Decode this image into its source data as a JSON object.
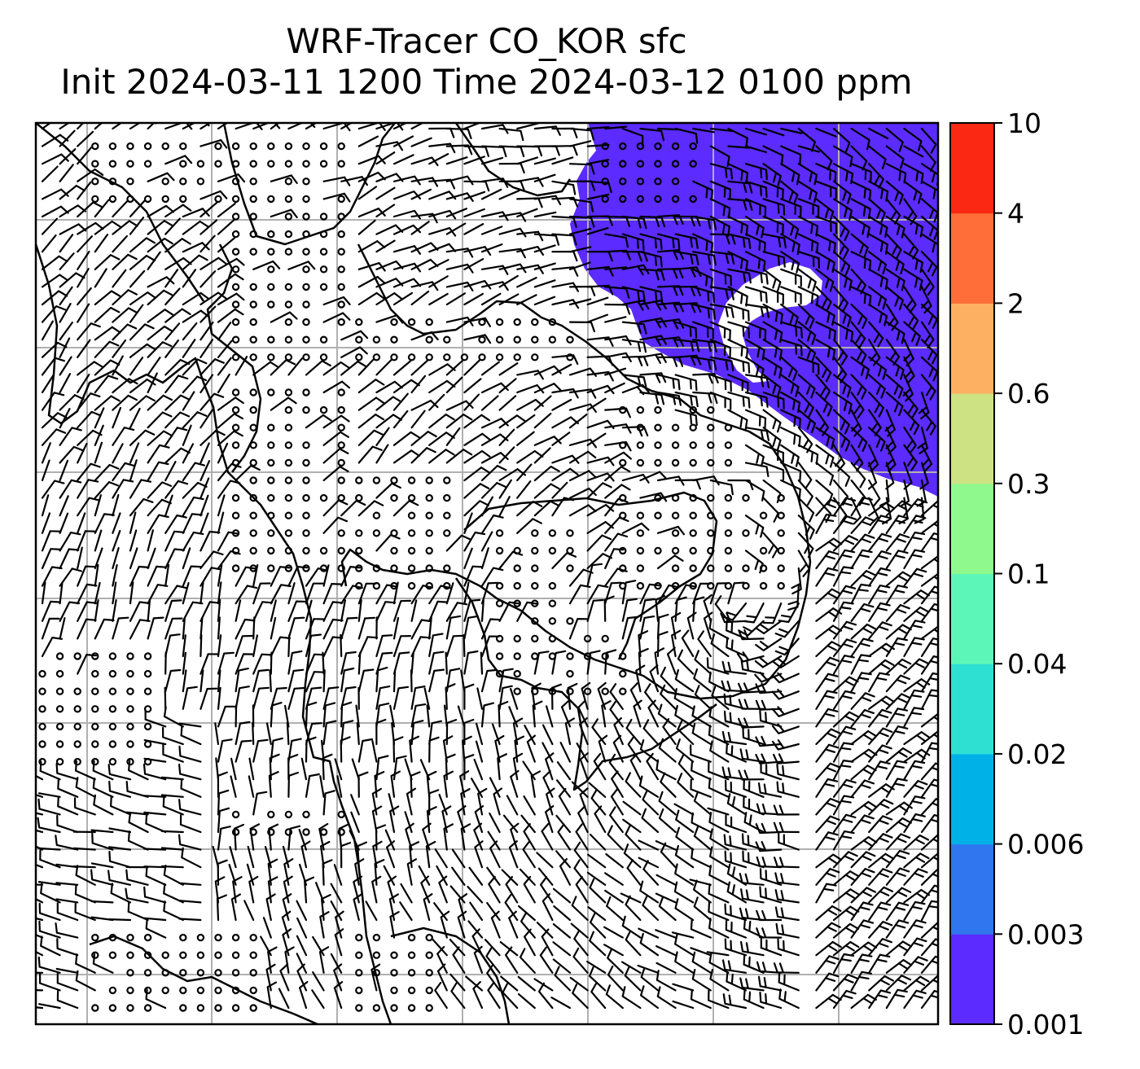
{
  "title": {
    "line1": "WRF-Tracer CO_KOR sfc",
    "line2": "Init 2024-03-11 1200 Time 2024-03-12 0100 ppm"
  },
  "colorbar": {
    "levels": [
      "0.001",
      "0.003",
      "0.006",
      "0.02",
      "0.04",
      "0.1",
      "0.3",
      "0.6",
      "2",
      "4",
      "10"
    ],
    "colors": [
      "#5b2bff",
      "#3076ee",
      "#00b1e8",
      "#2ee0d2",
      "#5cf7b8",
      "#90f98d",
      "#cde283",
      "#fdb062",
      "#ff6e39",
      "#fb2914"
    ]
  },
  "map": {
    "frame_color": "#000000",
    "grid_color": "#b0b0b0",
    "tracer_color": "#5b2bff",
    "barb_color": "#000000"
  }
}
